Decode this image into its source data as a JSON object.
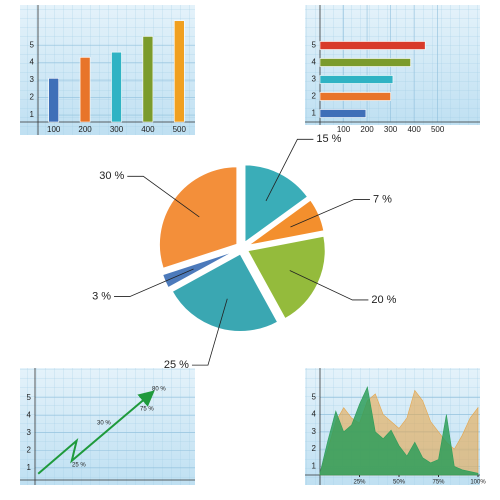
{
  "chart_data": [
    {
      "type": "bar",
      "categories": [
        "100",
        "200",
        "300",
        "400",
        "500"
      ],
      "values": [
        3.1,
        4.3,
        4.6,
        5.5,
        6.4
      ],
      "colors": [
        "#3f6fb8",
        "#e8742a",
        "#2fb3c4",
        "#7b9b2c",
        "#f0a020"
      ],
      "ylim": [
        0.6,
        7.3
      ],
      "yticks": [
        1,
        2,
        3,
        4,
        5
      ],
      "grid": true
    },
    {
      "type": "hbar",
      "categories": [
        "1",
        "2",
        "3",
        "4",
        "5"
      ],
      "values": [
        195,
        300,
        310,
        385,
        447
      ],
      "colors": [
        "#3f6fb8",
        "#e8742a",
        "#2fb3c4",
        "#7b9b2c",
        "#d83a2a"
      ],
      "xlim": [
        0,
        680
      ],
      "xticks": [
        100,
        200,
        300,
        400,
        500
      ],
      "grid": true
    },
    {
      "type": "pie",
      "values": [
        15,
        7,
        20,
        25,
        3,
        30
      ],
      "value_labels": [
        "15 %",
        "7 %",
        "20 %",
        "25 %",
        "3 %",
        "30 %"
      ],
      "colors": [
        "#2aa7b2",
        "#f2861c",
        "#8cb62c",
        "#2aa0ac",
        "#3d6fb6",
        "#f2862a"
      ]
    },
    {
      "type": "line",
      "x": [
        0.2,
        2.6,
        2.3,
        7.2
      ],
      "values": [
        0.66,
        2.54,
        1.4,
        5.2
      ],
      "color": "#1f9a3c",
      "xlim": [
        0,
        10
      ],
      "ylim": [
        0.3,
        6.7
      ],
      "yticks": [
        1,
        2,
        3,
        4,
        5
      ],
      "grid": true,
      "annotations": [
        "25 %",
        "30 %",
        "75 %",
        "80 %"
      ]
    },
    {
      "type": "area",
      "x": [
        0,
        5,
        10,
        15,
        20,
        25,
        30,
        35,
        40,
        45,
        50,
        55,
        60,
        65,
        70,
        75,
        80,
        85,
        90,
        95,
        100
      ],
      "series": [
        {
          "color": "#e6a64c",
          "values": [
            0.6,
            2.0,
            3.6,
            4.4,
            3.8,
            3.5,
            4.8,
            5.2,
            4.0,
            3.6,
            3.2,
            3.8,
            5.4,
            4.8,
            3.6,
            3.0,
            2.4,
            2.0,
            2.8,
            3.8,
            4.4
          ]
        },
        {
          "color": "#2e9e5a",
          "values": [
            0.6,
            2.5,
            4.2,
            3.0,
            3.4,
            4.6,
            5.6,
            3.0,
            2.6,
            3.1,
            2.2,
            1.6,
            2.4,
            1.5,
            1.2,
            1.4,
            4.0,
            1.0,
            0.8,
            0.7,
            0.6
          ]
        }
      ],
      "xlim": [
        0,
        100
      ],
      "ylim": [
        0.5,
        6.7
      ],
      "yticks": [
        1,
        2,
        3,
        4,
        5
      ],
      "xticks": [
        {
          "value": 25,
          "label": "25%"
        },
        {
          "value": 50,
          "label": "50%"
        },
        {
          "value": 75,
          "label": "75%"
        },
        {
          "value": 100,
          "label": "100%"
        }
      ],
      "grid": true
    }
  ]
}
